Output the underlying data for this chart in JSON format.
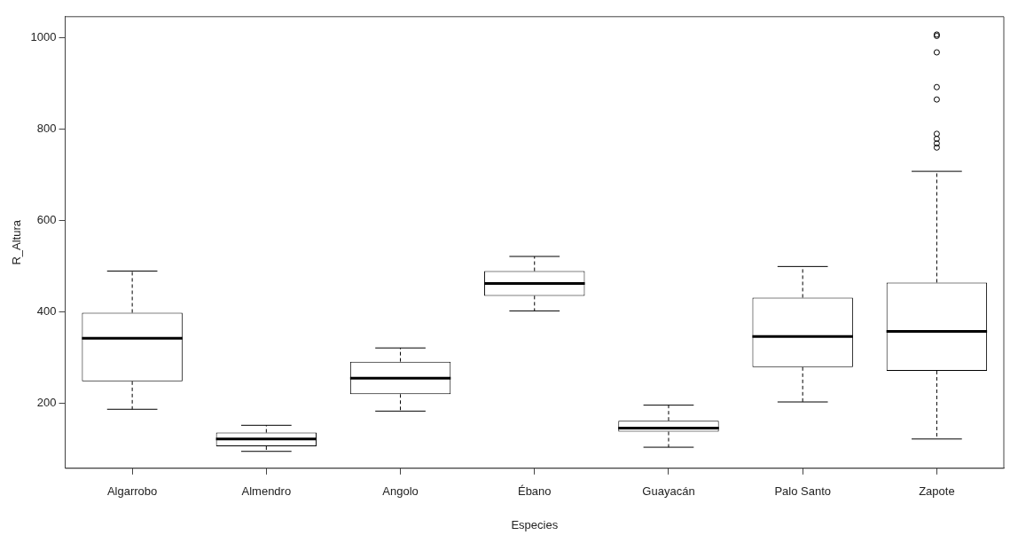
{
  "chart_data": {
    "type": "box",
    "xlabel": "Especies",
    "ylabel": "R_Altura",
    "categories": [
      "Algarrobo",
      "Almendro",
      "Angolo",
      "Ébano",
      "Guayacán",
      "Palo Santo",
      "Zapote"
    ],
    "boxes": [
      {
        "low": 187,
        "q1": 248,
        "median": 342,
        "q3": 398,
        "high": 489
      },
      {
        "low": 95,
        "q1": 106,
        "median": 122,
        "q3": 136,
        "high": 152
      },
      {
        "low": 183,
        "q1": 220,
        "median": 255,
        "q3": 291,
        "high": 321
      },
      {
        "low": 402,
        "q1": 435,
        "median": 462,
        "q3": 489,
        "high": 521
      },
      {
        "low": 104,
        "q1": 138,
        "median": 146,
        "q3": 162,
        "high": 196
      },
      {
        "low": 203,
        "q1": 279,
        "median": 346,
        "q3": 431,
        "high": 499
      },
      {
        "low": 122,
        "q1": 271,
        "median": 357,
        "q3": 464,
        "high": 707,
        "outliers": [
          1006,
          1003,
          967,
          891,
          864,
          789,
          778,
          768,
          759
        ]
      }
    ],
    "ylim": [
      58,
      1045
    ],
    "yticks": [
      200,
      400,
      600,
      800,
      1000
    ],
    "grid": false
  }
}
